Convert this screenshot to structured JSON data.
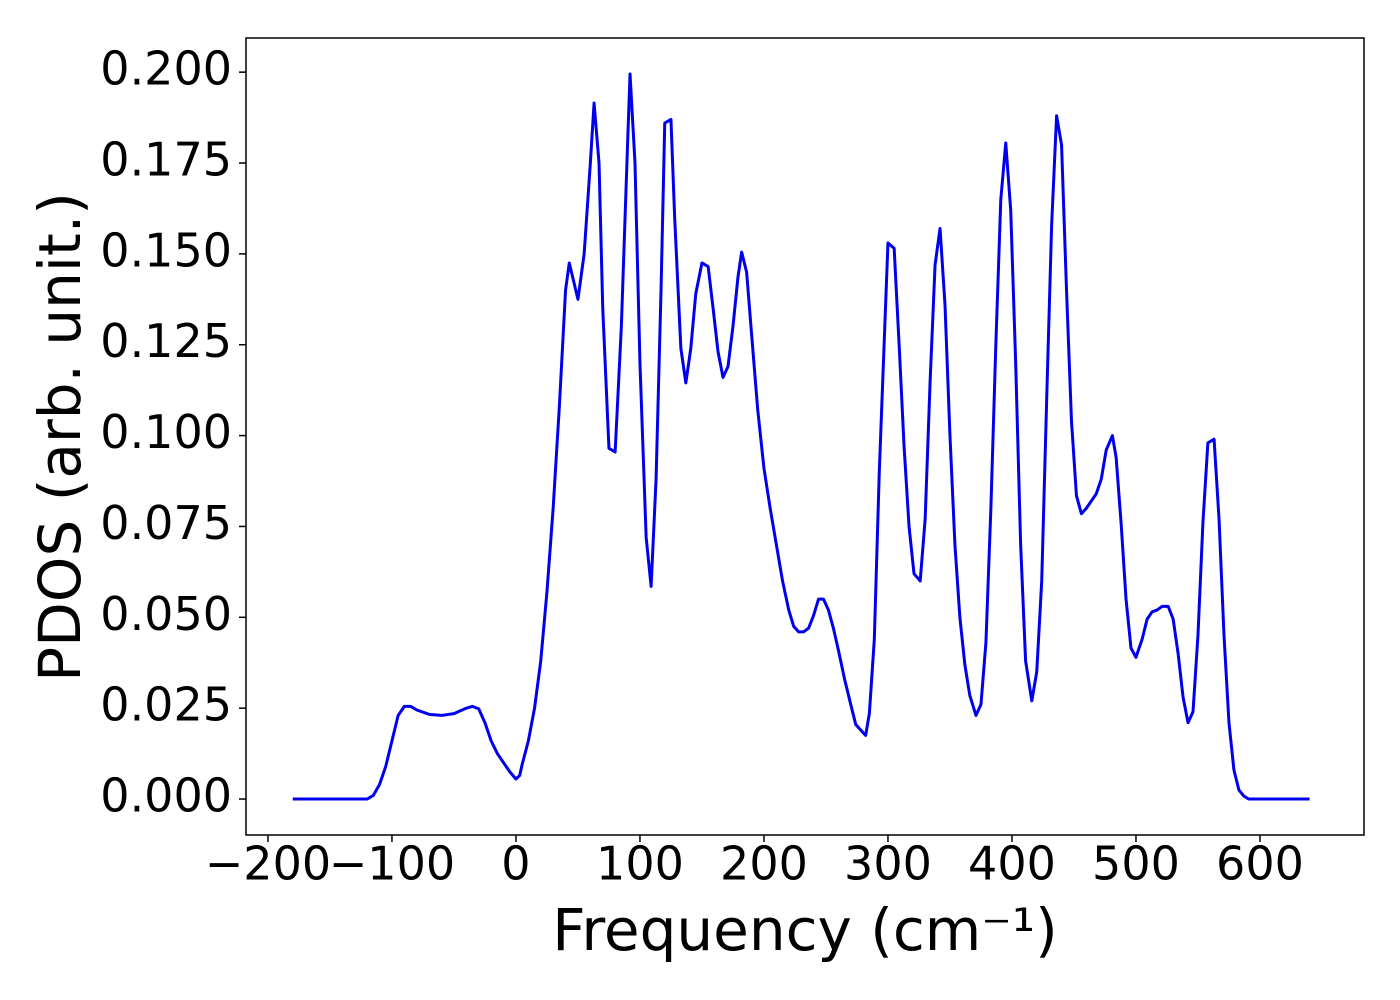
{
  "chart_data": {
    "type": "line",
    "x_label": "Frequency (cm⁻¹)",
    "y_label": "PDOS (arb. unit.)",
    "xlim": [
      -217.7,
      683.9
    ],
    "ylim": [
      -0.0099,
      0.2094
    ],
    "xticks": [
      {
        "value": -200,
        "label": "−200"
      },
      {
        "value": -100,
        "label": "−100"
      },
      0,
      100,
      200,
      300,
      400,
      500,
      600
    ],
    "yticks": [
      {
        "value": 0,
        "label": "0.000"
      },
      0.025,
      {
        "value": 0.05,
        "label": "0.050"
      },
      0.075,
      {
        "value": 0.1,
        "label": "0.100"
      },
      0.125,
      {
        "value": 0.15,
        "label": "0.150"
      },
      0.175,
      {
        "value": 0.2,
        "label": "0.200"
      }
    ],
    "grid": false,
    "series": [
      {
        "color": "#0000ee",
        "x": [
          -180,
          -120,
          -115,
          -110,
          -105,
          -100,
          -95,
          -90,
          -85,
          -80,
          -70,
          -60,
          -50,
          -40,
          -35,
          -30,
          -25,
          -20,
          -15,
          -10,
          -5,
          0,
          3,
          5,
          10,
          15,
          20,
          25,
          30,
          35,
          40,
          43,
          50,
          55,
          60,
          63,
          67,
          70,
          75,
          80,
          85,
          90,
          92,
          96,
          100,
          105,
          109,
          113,
          117,
          120,
          125,
          128,
          133,
          137,
          141,
          145,
          150,
          155,
          159,
          163,
          167,
          171,
          175,
          179,
          182,
          186,
          190,
          195,
          200,
          205,
          210,
          215,
          220,
          224,
          228,
          232,
          236,
          240,
          244,
          248,
          252,
          256,
          260,
          265,
          270,
          274,
          278,
          282,
          285,
          289,
          293,
          297,
          300,
          305,
          309,
          313,
          317,
          321,
          326,
          330,
          334,
          338,
          342,
          346,
          350,
          354,
          358,
          362,
          366,
          371,
          375,
          379,
          383,
          387,
          391,
          395,
          399,
          403,
          407,
          411,
          416,
          420,
          424,
          428,
          432,
          436,
          440,
          444,
          448,
          452,
          456,
          460,
          464,
          468,
          472,
          476,
          481,
          484,
          488,
          492,
          496,
          500,
          505,
          509,
          513,
          517,
          521,
          526,
          530,
          534,
          538,
          542,
          546,
          550,
          554,
          558,
          563,
          567,
          571,
          575,
          579,
          583,
          587,
          591,
          640
        ],
        "values": [
          0,
          0,
          0.001,
          0.004,
          0.009,
          0.016,
          0.023,
          0.0255,
          0.0255,
          0.0245,
          0.0233,
          0.023,
          0.0235,
          0.025,
          0.0255,
          0.0248,
          0.021,
          0.016,
          0.0125,
          0.01,
          0.0075,
          0.0055,
          0.0065,
          0.0095,
          0.016,
          0.025,
          0.038,
          0.057,
          0.08,
          0.108,
          0.14,
          0.1475,
          0.1375,
          0.15,
          0.175,
          0.1915,
          0.175,
          0.135,
          0.0965,
          0.0955,
          0.13,
          0.18,
          0.1995,
          0.175,
          0.12,
          0.072,
          0.0585,
          0.088,
          0.14,
          0.186,
          0.187,
          0.16,
          0.124,
          0.1145,
          0.124,
          0.139,
          0.1475,
          0.1465,
          0.135,
          0.123,
          0.116,
          0.119,
          0.13,
          0.1435,
          0.1505,
          0.145,
          0.128,
          0.107,
          0.091,
          0.08,
          0.07,
          0.06,
          0.052,
          0.0475,
          0.046,
          0.046,
          0.047,
          0.0505,
          0.055,
          0.055,
          0.052,
          0.047,
          0.041,
          0.033,
          0.026,
          0.0205,
          0.019,
          0.0175,
          0.0235,
          0.044,
          0.09,
          0.126,
          0.153,
          0.1515,
          0.125,
          0.097,
          0.075,
          0.062,
          0.06,
          0.077,
          0.115,
          0.147,
          0.157,
          0.136,
          0.1,
          0.07,
          0.05,
          0.037,
          0.0285,
          0.023,
          0.026,
          0.043,
          0.08,
          0.125,
          0.165,
          0.1805,
          0.162,
          0.12,
          0.07,
          0.038,
          0.027,
          0.035,
          0.06,
          0.11,
          0.158,
          0.188,
          0.18,
          0.14,
          0.104,
          0.0835,
          0.0785,
          0.08,
          0.082,
          0.084,
          0.088,
          0.096,
          0.1,
          0.094,
          0.076,
          0.055,
          0.0415,
          0.039,
          0.044,
          0.0495,
          0.0515,
          0.052,
          0.053,
          0.053,
          0.0495,
          0.04,
          0.028,
          0.021,
          0.024,
          0.045,
          0.076,
          0.098,
          0.099,
          0.077,
          0.045,
          0.021,
          0.008,
          0.0025,
          0.0008,
          0,
          0
        ]
      }
    ]
  }
}
